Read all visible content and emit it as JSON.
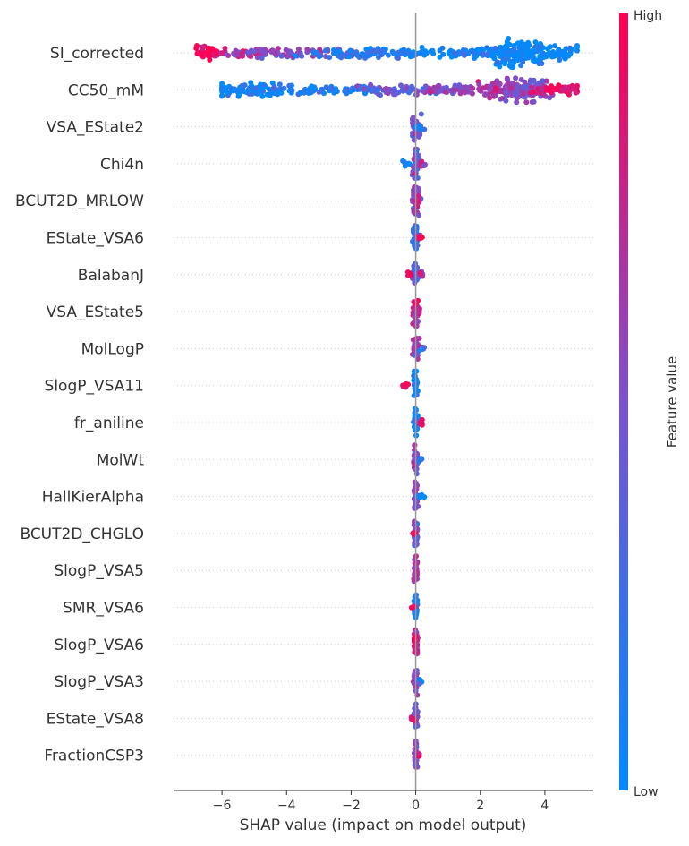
{
  "chart_data": {
    "type": "scatter",
    "subtype": "shap-beeswarm",
    "title": "",
    "xlabel": "SHAP value (impact on model output)",
    "ylabel": "",
    "xlim": [
      -7.5,
      5.5
    ],
    "xticks": [
      -6,
      -4,
      -2,
      0,
      2,
      4
    ],
    "xtick_labels": [
      "−6",
      "−4",
      "−2",
      "0",
      "2",
      "4"
    ],
    "grid": false,
    "colorbar": {
      "label": "Feature value",
      "high_label": "High",
      "low_label": "Low",
      "low_color": "#008bfb",
      "mid_color": "#7c52cd",
      "high_color": "#ff0051"
    },
    "features": [
      {
        "name": "SI_corrected",
        "range": [
          -6.8,
          5.0
        ],
        "clusters": [
          {
            "x": -6.5,
            "spread": 0.25,
            "fv": 0.97,
            "n": 40,
            "h": 8
          },
          {
            "x": -5.3,
            "spread": 0.6,
            "fv": 0.72,
            "n": 50,
            "h": 5
          },
          {
            "x": -3.6,
            "spread": 0.8,
            "fv": 0.55,
            "n": 60,
            "h": 6
          },
          {
            "x": -1.5,
            "spread": 1.1,
            "fv": 0.12,
            "n": 80,
            "h": 6
          },
          {
            "x": 1.3,
            "spread": 1.1,
            "fv": 0.05,
            "n": 80,
            "h": 6
          },
          {
            "x": 3.2,
            "spread": 0.45,
            "fv": 0.02,
            "n": 140,
            "h": 16
          },
          {
            "x": 4.4,
            "spread": 0.4,
            "fv": 0.03,
            "n": 50,
            "h": 8
          }
        ]
      },
      {
        "name": "CC50_mM",
        "range": [
          -6.0,
          5.0
        ],
        "clusters": [
          {
            "x": -5.0,
            "spread": 0.8,
            "fv": 0.05,
            "n": 90,
            "h": 8
          },
          {
            "x": -2.6,
            "spread": 1.0,
            "fv": 0.12,
            "n": 70,
            "h": 6
          },
          {
            "x": -0.6,
            "spread": 0.7,
            "fv": 0.4,
            "n": 60,
            "h": 6
          },
          {
            "x": 1.2,
            "spread": 0.6,
            "fv": 0.55,
            "n": 60,
            "h": 6
          },
          {
            "x": 2.6,
            "spread": 0.4,
            "fv": 0.7,
            "n": 60,
            "h": 10
          },
          {
            "x": 3.5,
            "spread": 0.4,
            "fv": 0.55,
            "n": 110,
            "h": 15
          },
          {
            "x": 4.4,
            "spread": 0.4,
            "fv": 0.92,
            "n": 50,
            "h": 6
          }
        ]
      },
      {
        "name": "VSA_EState2",
        "range": [
          -0.1,
          0.3
        ],
        "clusters": [
          {
            "x": 0.0,
            "spread": 0.07,
            "fv": 0.5,
            "n": 45,
            "h": 16
          },
          {
            "x": 0.12,
            "spread": 0.06,
            "fv": 0.1,
            "n": 10,
            "h": 6
          }
        ]
      },
      {
        "name": "Chi4n",
        "range": [
          -0.4,
          0.3
        ],
        "clusters": [
          {
            "x": 0.0,
            "spread": 0.06,
            "fv": 0.45,
            "n": 45,
            "h": 16
          },
          {
            "x": -0.3,
            "spread": 0.07,
            "fv": 0.1,
            "n": 6,
            "h": 3
          },
          {
            "x": 0.2,
            "spread": 0.06,
            "fv": 0.7,
            "n": 8,
            "h": 4
          }
        ]
      },
      {
        "name": "BCUT2D_MRLOW",
        "range": [
          -0.1,
          0.2
        ],
        "clusters": [
          {
            "x": 0.0,
            "spread": 0.06,
            "fv": 0.55,
            "n": 50,
            "h": 16
          },
          {
            "x": 0.08,
            "spread": 0.04,
            "fv": 0.75,
            "n": 10,
            "h": 6
          }
        ]
      },
      {
        "name": "EState_VSA6",
        "range": [
          -0.1,
          0.2
        ],
        "clusters": [
          {
            "x": 0.0,
            "spread": 0.04,
            "fv": 0.2,
            "n": 45,
            "h": 16
          },
          {
            "x": 0.15,
            "spread": 0.05,
            "fv": 0.85,
            "n": 8,
            "h": 4
          }
        ]
      },
      {
        "name": "BalabanJ",
        "range": [
          -0.3,
          0.3
        ],
        "clusters": [
          {
            "x": 0.0,
            "spread": 0.05,
            "fv": 0.35,
            "n": 45,
            "h": 16
          },
          {
            "x": -0.22,
            "spread": 0.05,
            "fv": 0.95,
            "n": 5,
            "h": 3
          },
          {
            "x": 0.2,
            "spread": 0.05,
            "fv": 0.6,
            "n": 8,
            "h": 4
          }
        ]
      },
      {
        "name": "VSA_EState5",
        "range": [
          -0.1,
          0.15
        ],
        "clusters": [
          {
            "x": 0.0,
            "spread": 0.05,
            "fv": 0.75,
            "n": 50,
            "h": 16
          },
          {
            "x": 0.1,
            "spread": 0.03,
            "fv": 0.9,
            "n": 6,
            "h": 4
          }
        ]
      },
      {
        "name": "MolLogP",
        "range": [
          -0.1,
          0.3
        ],
        "clusters": [
          {
            "x": 0.0,
            "spread": 0.05,
            "fv": 0.6,
            "n": 45,
            "h": 16
          },
          {
            "x": 0.2,
            "spread": 0.05,
            "fv": 0.3,
            "n": 8,
            "h": 4
          }
        ]
      },
      {
        "name": "SlogP_VSA11",
        "range": [
          -0.4,
          0.1
        ],
        "clusters": [
          {
            "x": 0.0,
            "spread": 0.03,
            "fv": 0.05,
            "n": 45,
            "h": 16
          },
          {
            "x": -0.3,
            "spread": 0.06,
            "fv": 0.95,
            "n": 8,
            "h": 3
          }
        ]
      },
      {
        "name": "fr_aniline",
        "range": [
          -0.1,
          0.2
        ],
        "clusters": [
          {
            "x": 0.0,
            "spread": 0.03,
            "fv": 0.05,
            "n": 45,
            "h": 16
          },
          {
            "x": 0.15,
            "spread": 0.04,
            "fv": 0.95,
            "n": 8,
            "h": 4
          }
        ]
      },
      {
        "name": "MolWt",
        "range": [
          -0.1,
          0.2
        ],
        "clusters": [
          {
            "x": 0.0,
            "spread": 0.03,
            "fv": 0.5,
            "n": 45,
            "h": 16
          },
          {
            "x": 0.15,
            "spread": 0.04,
            "fv": 0.1,
            "n": 6,
            "h": 3
          }
        ]
      },
      {
        "name": "HallKierAlpha",
        "range": [
          -0.1,
          0.3
        ],
        "clusters": [
          {
            "x": 0.0,
            "spread": 0.03,
            "fv": 0.6,
            "n": 45,
            "h": 16
          },
          {
            "x": 0.12,
            "spread": 0.05,
            "fv": 0.1,
            "n": 5,
            "h": 3
          },
          {
            "x": 0.28,
            "spread": 0.01,
            "fv": 0.05,
            "n": 1,
            "h": 1
          }
        ]
      },
      {
        "name": "BCUT2D_CHGLO",
        "range": [
          -0.1,
          0.1
        ],
        "clusters": [
          {
            "x": 0.0,
            "spread": 0.03,
            "fv": 0.45,
            "n": 45,
            "h": 16
          },
          {
            "x": -0.06,
            "spread": 0.03,
            "fv": 0.85,
            "n": 5,
            "h": 3
          }
        ]
      },
      {
        "name": "SlogP_VSA5",
        "range": [
          -0.1,
          0.1
        ],
        "clusters": [
          {
            "x": 0.0,
            "spread": 0.03,
            "fv": 0.7,
            "n": 50,
            "h": 16
          }
        ]
      },
      {
        "name": "SMR_VSA6",
        "range": [
          -0.2,
          0.1
        ],
        "clusters": [
          {
            "x": 0.0,
            "spread": 0.02,
            "fv": 0.15,
            "n": 45,
            "h": 16
          },
          {
            "x": -0.12,
            "spread": 0.04,
            "fv": 0.95,
            "n": 5,
            "h": 3
          }
        ]
      },
      {
        "name": "SlogP_VSA6",
        "range": [
          -0.05,
          0.1
        ],
        "clusters": [
          {
            "x": 0.0,
            "spread": 0.03,
            "fv": 0.75,
            "n": 50,
            "h": 16
          }
        ]
      },
      {
        "name": "SlogP_VSA3",
        "range": [
          -0.1,
          0.2
        ],
        "clusters": [
          {
            "x": 0.0,
            "spread": 0.03,
            "fv": 0.55,
            "n": 45,
            "h": 16
          },
          {
            "x": 0.12,
            "spread": 0.04,
            "fv": 0.1,
            "n": 5,
            "h": 3
          }
        ]
      },
      {
        "name": "EState_VSA8",
        "range": [
          -0.15,
          0.1
        ],
        "clusters": [
          {
            "x": 0.0,
            "spread": 0.03,
            "fv": 0.45,
            "n": 45,
            "h": 16
          },
          {
            "x": -0.1,
            "spread": 0.04,
            "fv": 0.9,
            "n": 6,
            "h": 3
          }
        ]
      },
      {
        "name": "FractionCSP3",
        "range": [
          -0.05,
          0.15
        ],
        "clusters": [
          {
            "x": 0.0,
            "spread": 0.02,
            "fv": 0.5,
            "n": 45,
            "h": 16
          },
          {
            "x": 0.1,
            "spread": 0.03,
            "fv": 0.9,
            "n": 5,
            "h": 3
          }
        ]
      }
    ]
  }
}
